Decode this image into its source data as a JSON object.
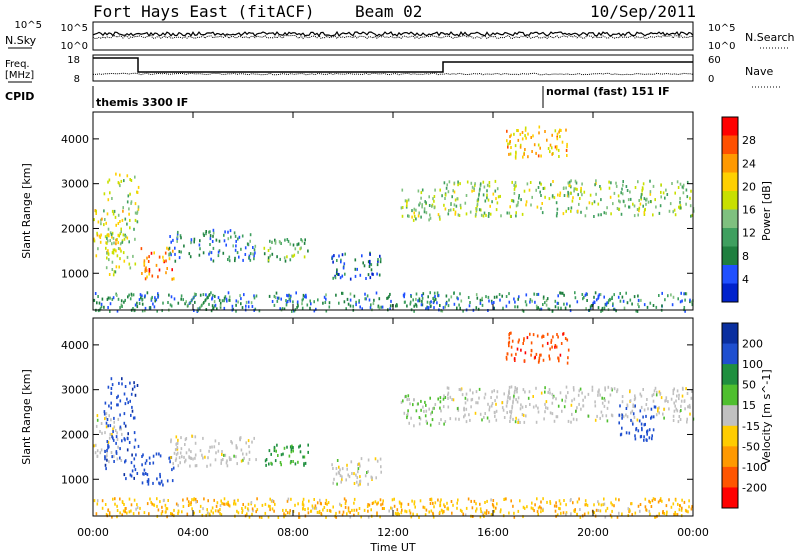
{
  "header": {
    "station": "Fort Hays East (fitACF)",
    "beam": "Beam 02",
    "date": "10/Sep/2011"
  },
  "top_panels": {
    "nsky_label": "N.Sky",
    "nsky_ticks": [
      "10^5",
      "10^0"
    ],
    "nsearch_label": "N.Search",
    "nsearch_ticks": [
      "10^5",
      "10^0"
    ],
    "freq_label": "Freq.",
    "freq_unit": "[MHz]",
    "freq_ticks": [
      "18",
      "8"
    ],
    "nave_label": "Nave",
    "nave_ticks": [
      "60",
      "0"
    ],
    "cpid_label": "CPID",
    "cpid_modes": [
      "themis 3300 IF",
      "normal (fast) 151 IF"
    ]
  },
  "colors": {
    "power_scale": [
      "#0022cc",
      "#2050ff",
      "#1f7f3f",
      "#3f9f5f",
      "#7fc07f",
      "#c8e000",
      "#ffd000",
      "#ff9900",
      "#ff5000",
      "#ff0000"
    ],
    "velocity_scale": [
      "#0a2f9f",
      "#1f4fcf",
      "#1f8f3f",
      "#4fbf2f",
      "#c0c0c0",
      "#ffcc00",
      "#ff9900",
      "#ff5500",
      "#ff0000"
    ],
    "ground_scatter": "#c0c0c0"
  },
  "chart_data": [
    {
      "type": "heatmap",
      "title": "Power",
      "xlabel": "",
      "ylabel": "Slant Range [km]",
      "x_ticks": [
        "00:00",
        "04:00",
        "08:00",
        "12:00",
        "16:00",
        "20:00",
        "00:00"
      ],
      "y_ticks": [
        "1000",
        "2000",
        "3000",
        "4000"
      ],
      "xlim_hours": [
        0,
        24
      ],
      "ylim_km": [
        180,
        4600
      ],
      "colorbar_label": "Power [dB]",
      "colorbar_ticks": [
        "28",
        "24",
        "20",
        "16",
        "12",
        "8",
        "4"
      ],
      "regions": [
        {
          "t": [
            0.0,
            1.2
          ],
          "r": [
            1400,
            2500
          ],
          "value_db": 18
        },
        {
          "t": [
            0.4,
            1.8
          ],
          "r": [
            1000,
            3300
          ],
          "value_db": 16
        },
        {
          "t": [
            1.9,
            3.2
          ],
          "r": [
            900,
            1600
          ],
          "value_db": 24
        },
        {
          "t": [
            3.0,
            6.5
          ],
          "r": [
            1300,
            2000
          ],
          "value_db": 8
        },
        {
          "t": [
            6.8,
            8.6
          ],
          "r": [
            1300,
            1800
          ],
          "value_db": 12
        },
        {
          "t": [
            9.5,
            11.5
          ],
          "r": [
            900,
            1500
          ],
          "value_db": 6
        },
        {
          "t": [
            12.3,
            14.2
          ],
          "r": [
            2200,
            2900
          ],
          "value_db": 14
        },
        {
          "t": [
            14.0,
            24.0
          ],
          "r": [
            2300,
            3100
          ],
          "value_db": 14
        },
        {
          "t": [
            16.5,
            19.0
          ],
          "r": [
            3600,
            4300
          ],
          "value_db": 20
        },
        {
          "t": [
            0.0,
            24.0
          ],
          "r": [
            180,
            600
          ],
          "value_db": 8
        }
      ]
    },
    {
      "type": "heatmap",
      "title": "Velocity",
      "xlabel": "Time UT",
      "ylabel": "Slant Range [km]",
      "x_ticks": [
        "00:00",
        "04:00",
        "08:00",
        "12:00",
        "16:00",
        "20:00",
        "00:00"
      ],
      "y_ticks": [
        "1000",
        "2000",
        "3000",
        "4000"
      ],
      "xlim_hours": [
        0,
        24
      ],
      "ylim_km": [
        180,
        4600
      ],
      "colorbar_label": "Velocity [m s^-1]",
      "colorbar_ticks": [
        "200",
        "100",
        "50",
        "15",
        "-15",
        "-50",
        "-100",
        "-200"
      ],
      "regions": [
        {
          "t": [
            0.0,
            1.2
          ],
          "r": [
            1400,
            2500
          ],
          "value_ms": -10
        },
        {
          "t": [
            0.4,
            1.8
          ],
          "r": [
            1000,
            3300
          ],
          "value_ms": 180
        },
        {
          "t": [
            1.9,
            3.2
          ],
          "r": [
            900,
            1600
          ],
          "value_ms": 160
        },
        {
          "t": [
            3.0,
            6.5
          ],
          "r": [
            1300,
            2000
          ],
          "value_ms": 0
        },
        {
          "t": [
            6.8,
            8.6
          ],
          "r": [
            1300,
            1800
          ],
          "value_ms": 60
        },
        {
          "t": [
            9.5,
            11.5
          ],
          "r": [
            900,
            1500
          ],
          "value_ms": 0
        },
        {
          "t": [
            12.3,
            14.2
          ],
          "r": [
            2200,
            2900
          ],
          "value_ms": 20
        },
        {
          "t": [
            14.0,
            24.0
          ],
          "r": [
            2300,
            3100
          ],
          "value_ms": 0
        },
        {
          "t": [
            16.5,
            19.0
          ],
          "r": [
            3600,
            4300
          ],
          "value_ms": -180
        },
        {
          "t": [
            21.0,
            22.5
          ],
          "r": [
            1900,
            2700
          ],
          "value_ms": 150
        },
        {
          "t": [
            0.0,
            24.0
          ],
          "r": [
            180,
            600
          ],
          "value_ms": -40
        }
      ]
    }
  ]
}
